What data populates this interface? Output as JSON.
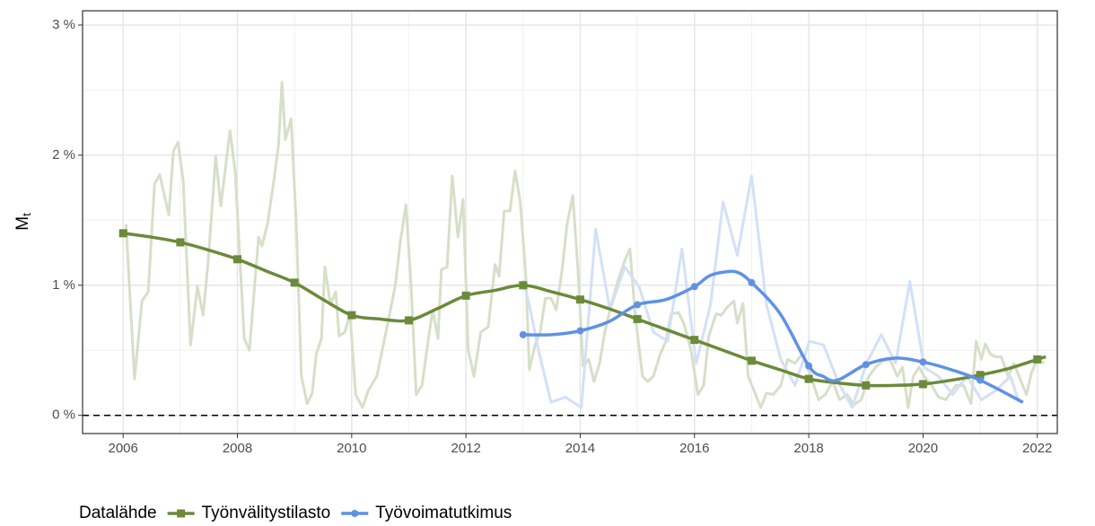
{
  "chart_data": {
    "type": "line",
    "y_label": "M",
    "y_label_sub": "t",
    "legend_title": "Datalähde",
    "legend": "bottom",
    "grid": true,
    "hline": 0,
    "xlim": [
      2005.29,
      2022.35
    ],
    "ylim": [
      -0.14,
      3.11
    ],
    "xticks": [
      2006,
      2008,
      2010,
      2012,
      2014,
      2016,
      2018,
      2020,
      2022
    ],
    "yticks": [
      {
        "value": 0,
        "label": "0 %"
      },
      {
        "value": 1,
        "label": "1 %"
      },
      {
        "value": 2,
        "label": "2 %"
      },
      {
        "value": 3,
        "label": "3 %"
      }
    ],
    "series": [
      {
        "color": "#d6dfc8",
        "width": 3,
        "x": [
          2006.05,
          2006.2,
          2006.33,
          2006.44,
          2006.55,
          2006.64,
          2006.8,
          2006.88,
          2006.96,
          2007.05,
          2007.18,
          2007.3,
          2007.4,
          2007.49,
          2007.62,
          2007.71,
          2007.87,
          2007.96,
          2008.12,
          2008.21,
          2008.37,
          2008.43,
          2008.53,
          2008.64,
          2008.72,
          2008.78,
          2008.84,
          2008.94,
          2009.03,
          2009.12,
          2009.22,
          2009.31,
          2009.38,
          2009.47,
          2009.53,
          2009.63,
          2009.72,
          2009.78,
          2009.88,
          2009.97,
          2010.07,
          2010.19,
          2010.29,
          2010.44,
          2010.6,
          2010.76,
          2010.85,
          2010.95,
          2011.04,
          2011.13,
          2011.23,
          2011.35,
          2011.42,
          2011.51,
          2011.57,
          2011.67,
          2011.76,
          2011.86,
          2011.95,
          2012.04,
          2012.14,
          2012.26,
          2012.39,
          2012.51,
          2012.58,
          2012.67,
          2012.77,
          2012.86,
          2012.95,
          2013.05,
          2013.11,
          2013.21,
          2013.3,
          2013.39,
          2013.49,
          2013.58,
          2013.68,
          2013.77,
          2013.87,
          2013.96,
          2014.05,
          2014.15,
          2014.24,
          2014.34,
          2014.43,
          2014.52,
          2014.65,
          2014.78,
          2014.87,
          2014.96,
          2015.09,
          2015.18,
          2015.28,
          2015.4,
          2015.5,
          2015.59,
          2015.72,
          2015.81,
          2015.94,
          2016.06,
          2016.16,
          2016.25,
          2016.38,
          2016.47,
          2016.57,
          2016.69,
          2016.75,
          2016.85,
          2016.94,
          2017.07,
          2017.16,
          2017.26,
          2017.38,
          2017.51,
          2017.63,
          2017.76,
          2017.88,
          2018.04,
          2018.17,
          2018.29,
          2018.42,
          2018.54,
          2018.67,
          2018.79,
          2018.92,
          2019.05,
          2019.17,
          2019.3,
          2019.42,
          2019.55,
          2019.64,
          2019.74,
          2019.83,
          2019.93,
          2020.02,
          2020.14,
          2020.27,
          2020.4,
          2020.49,
          2020.58,
          2020.71,
          2020.84,
          2020.93,
          2021.02,
          2021.09,
          2021.18,
          2021.27,
          2021.37,
          2021.49,
          2021.59,
          2021.68,
          2021.81,
          2021.9,
          2022.0,
          2022.12
        ],
        "values": [
          1.47,
          0.28,
          0.88,
          0.95,
          1.78,
          1.85,
          1.54,
          2.03,
          2.1,
          1.81,
          0.54,
          0.99,
          0.77,
          1.19,
          1.99,
          1.61,
          2.19,
          1.88,
          0.59,
          0.5,
          1.37,
          1.3,
          1.48,
          1.81,
          2.08,
          2.56,
          2.12,
          2.28,
          1.47,
          0.3,
          0.09,
          0.17,
          0.47,
          0.59,
          1.14,
          0.85,
          0.95,
          0.61,
          0.64,
          0.78,
          0.16,
          0.06,
          0.19,
          0.3,
          0.64,
          0.99,
          1.33,
          1.62,
          0.99,
          0.16,
          0.23,
          0.61,
          0.81,
          0.59,
          1.12,
          1.14,
          1.84,
          1.37,
          1.66,
          0.5,
          0.3,
          0.64,
          0.68,
          1.16,
          1.07,
          1.57,
          1.57,
          1.88,
          1.64,
          1.06,
          0.35,
          0.54,
          0.64,
          0.9,
          0.9,
          0.81,
          1.11,
          1.47,
          1.69,
          1.12,
          0.38,
          0.43,
          0.26,
          0.4,
          0.64,
          0.81,
          1.02,
          1.19,
          1.28,
          0.78,
          0.3,
          0.26,
          0.3,
          0.47,
          0.57,
          0.78,
          0.79,
          0.71,
          0.5,
          0.16,
          0.23,
          0.61,
          0.78,
          0.77,
          0.83,
          0.88,
          0.71,
          0.86,
          0.3,
          0.16,
          0.06,
          0.17,
          0.16,
          0.23,
          0.43,
          0.4,
          0.47,
          0.3,
          0.12,
          0.16,
          0.26,
          0.12,
          0.16,
          0.08,
          0.12,
          0.3,
          0.37,
          0.42,
          0.43,
          0.3,
          0.37,
          0.06,
          0.3,
          0.37,
          0.3,
          0.24,
          0.14,
          0.12,
          0.18,
          0.23,
          0.23,
          0.09,
          0.57,
          0.43,
          0.55,
          0.47,
          0.45,
          0.45,
          0.3,
          0.4,
          0.3,
          0.16,
          0.33,
          0.43,
          0.4
        ]
      },
      {
        "color": "#d3e0f7",
        "width": 3,
        "x": [
          2013.0,
          2013.11,
          2013.27,
          2013.49,
          2013.74,
          2014.02,
          2014.27,
          2014.52,
          2014.78,
          2015.03,
          2015.28,
          2015.53,
          2015.78,
          2016.03,
          2016.28,
          2016.5,
          2016.75,
          2017.0,
          2017.26,
          2017.51,
          2017.76,
          2018.01,
          2018.26,
          2018.51,
          2018.76,
          2019.01,
          2019.27,
          2019.52,
          2019.77,
          2020.02,
          2020.27,
          2020.52,
          2020.77,
          2021.02,
          2021.27,
          2021.53,
          2021.68
        ],
        "values": [
          1.04,
          0.85,
          0.5,
          0.1,
          0.14,
          0.06,
          1.43,
          0.81,
          1.14,
          0.99,
          0.64,
          0.57,
          1.28,
          0.4,
          0.85,
          1.64,
          1.23,
          1.84,
          0.85,
          0.43,
          0.23,
          0.57,
          0.54,
          0.26,
          0.06,
          0.4,
          0.62,
          0.4,
          1.03,
          0.37,
          0.3,
          0.16,
          0.3,
          0.12,
          0.19,
          0.3,
          0.1
        ]
      },
      {
        "name": "Työnvälitystilasto",
        "color": "#6b8a3a",
        "width": 3.5,
        "marker": "square",
        "smooth": true,
        "x": [
          2006,
          2006.5,
          2007,
          2007.5,
          2008,
          2008.5,
          2009,
          2009.5,
          2010,
          2010.5,
          2011,
          2011.5,
          2012,
          2012.5,
          2013,
          2013.5,
          2014,
          2014.5,
          2015,
          2015.5,
          2016,
          2016.5,
          2017,
          2017.5,
          2018,
          2018.5,
          2019,
          2019.5,
          2020,
          2020.5,
          2021,
          2021.5,
          2022,
          2022.15
        ],
        "values": [
          1.4,
          1.37,
          1.33,
          1.27,
          1.2,
          1.11,
          1.02,
          0.89,
          0.77,
          0.74,
          0.73,
          0.82,
          0.92,
          0.96,
          1.0,
          0.95,
          0.89,
          0.82,
          0.74,
          0.66,
          0.58,
          0.5,
          0.42,
          0.35,
          0.28,
          0.25,
          0.23,
          0.23,
          0.24,
          0.27,
          0.31,
          0.36,
          0.43,
          0.45
        ]
      },
      {
        "name": "Työvoimatutkimus",
        "color": "#5f91e6",
        "width": 3.5,
        "marker": "circle",
        "smooth": true,
        "x": [
          2013,
          2013.5,
          2014,
          2014.5,
          2015,
          2015.5,
          2016,
          2016.25,
          2016.5,
          2016.75,
          2017,
          2017.5,
          2018,
          2018.25,
          2018.5,
          2019,
          2019.5,
          2020,
          2020.5,
          2021,
          2021.75
        ],
        "values": [
          0.62,
          0.62,
          0.65,
          0.72,
          0.85,
          0.89,
          0.99,
          1.07,
          1.1,
          1.1,
          1.02,
          0.78,
          0.38,
          0.3,
          0.27,
          0.39,
          0.44,
          0.41,
          0.35,
          0.27,
          0.1
        ]
      }
    ]
  }
}
